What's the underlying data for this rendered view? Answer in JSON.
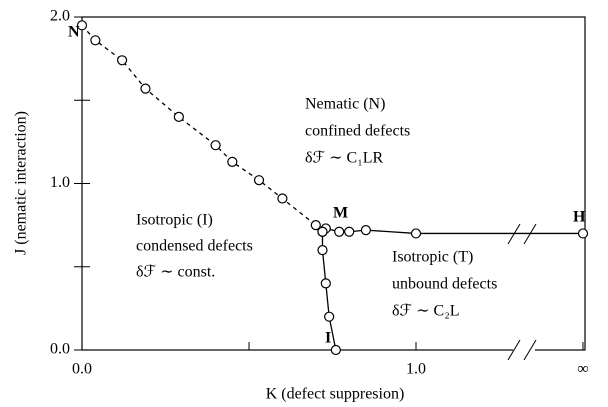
{
  "chart_data": {
    "type": "line",
    "xlabel": "K (defect suppresion)",
    "ylabel": "J (nematic interaction)",
    "xlim": [
      0,
      1.506
    ],
    "ylim": [
      0,
      2.0
    ],
    "xticks": [
      {
        "value": 0,
        "label": "0.0"
      },
      0.5,
      {
        "value": 1,
        "label": "1.0"
      },
      {
        "value": 1.5,
        "label": "∞"
      }
    ],
    "yticks": [
      {
        "value": 0,
        "label": "0.0"
      },
      0.5,
      {
        "value": 1,
        "label": "1.0"
      },
      1.5,
      {
        "value": 2,
        "label": "2.0"
      }
    ],
    "series": [
      {
        "dashed": true,
        "color": "#000",
        "x": [
          0.0,
          0.04,
          0.12,
          0.19,
          0.29,
          0.4,
          0.45,
          0.53,
          0.6,
          0.7,
          0.72
        ],
        "values": [
          1.95,
          1.86,
          1.74,
          1.57,
          1.4,
          1.23,
          1.13,
          1.02,
          0.91,
          0.75,
          0.71
        ]
      },
      {
        "dashed": false,
        "color": "#000",
        "x": [
          0.72,
          0.73,
          0.77,
          0.8,
          0.85,
          1.0,
          1.5
        ],
        "values": [
          0.71,
          0.73,
          0.71,
          0.71,
          0.72,
          0.7,
          0.7
        ]
      },
      {
        "dashed": false,
        "color": "#000",
        "x": [
          0.72,
          0.72,
          0.73,
          0.74,
          0.76
        ],
        "values": [
          0.71,
          0.6,
          0.4,
          0.2,
          0.0
        ]
      }
    ],
    "annotations": [
      "N",
      "M",
      "H",
      "I",
      "Nematic (N)",
      "confined defects",
      "δℱ ∼ C₁LR",
      "Isotropic (I)",
      "condensed defects",
      "δℱ ∼ const.",
      "Isotropic (T)",
      "unbound defects",
      "δℱ ∼ C₂L"
    ]
  }
}
